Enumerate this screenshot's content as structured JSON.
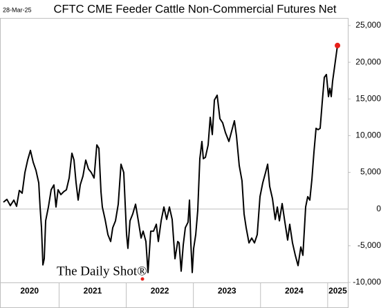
{
  "chart_data": {
    "type": "line",
    "title": "CFTC CME Feeder Cattle Non-Commercial Futures Net",
    "date_label": "28-Mar-25",
    "watermark": "The Daily Shot®",
    "x": [
      2020.171,
      2020.223,
      2020.274,
      2020.326,
      2020.367,
      2020.408,
      2020.45,
      2020.491,
      2020.532,
      2020.573,
      2020.614,
      2020.656,
      2020.697,
      2020.717,
      2020.738,
      2020.759,
      2020.779,
      2020.8,
      2020.841,
      2020.882,
      2020.923,
      2020.954,
      2020.985,
      2021.026,
      2021.067,
      2021.109,
      2021.15,
      2021.191,
      2021.222,
      2021.253,
      2021.284,
      2021.315,
      2021.356,
      2021.397,
      2021.438,
      2021.479,
      2021.521,
      2021.562,
      2021.593,
      2021.624,
      2021.644,
      2021.685,
      2021.727,
      2021.768,
      2021.799,
      2021.84,
      2021.881,
      2021.922,
      2021.963,
      2022.005,
      2022.025,
      2022.056,
      2022.097,
      2022.139,
      2022.18,
      2022.221,
      2022.252,
      2022.293,
      2022.324,
      2022.365,
      2022.406,
      2022.448,
      2022.478,
      2022.52,
      2022.561,
      2022.602,
      2022.643,
      2022.684,
      2022.726,
      2022.767,
      2022.787,
      2022.818,
      2022.849,
      2022.88,
      2022.921,
      2022.942,
      2022.962,
      2022.983,
      2023.004,
      2023.035,
      2023.065,
      2023.096,
      2023.127,
      2023.148,
      2023.179,
      2023.22,
      2023.251,
      2023.282,
      2023.313,
      2023.354,
      2023.395,
      2023.436,
      2023.477,
      2023.529,
      2023.57,
      2023.611,
      2023.642,
      2023.683,
      2023.724,
      2023.755,
      2023.786,
      2023.828,
      2023.869,
      2023.91,
      2023.951,
      2023.992,
      2024.033,
      2024.075,
      2024.106,
      2024.136,
      2024.178,
      2024.219,
      2024.25,
      2024.281,
      2024.322,
      2024.363,
      2024.404,
      2024.435,
      2024.476,
      2024.518,
      2024.559,
      2024.6,
      2024.631,
      2024.672,
      2024.703,
      2024.734,
      2024.765,
      2024.796,
      2024.827,
      2024.857,
      2024.888,
      2024.919,
      2024.95,
      2024.981,
      2025.012,
      2025.032,
      2025.053,
      2025.073,
      2025.104,
      2025.146
    ],
    "series": [
      {
        "color": "#000000",
        "values": [
          940,
          1320,
          470,
          1220,
          380,
          2540,
          2160,
          4980,
          6670,
          7990,
          6390,
          5260,
          3570,
          280,
          -2540,
          -7610,
          -6770,
          -1600,
          280,
          2630,
          3290,
          280,
          2630,
          1970,
          2350,
          2630,
          4230,
          7610,
          6670,
          3570,
          1220,
          3290,
          4510,
          6670,
          5450,
          4980,
          4230,
          8740,
          8270,
          2350,
          280,
          -1410,
          -3480,
          -4420,
          -2540,
          -1600,
          660,
          6110,
          4980,
          -3480,
          -5360,
          -1600,
          -660,
          660,
          -1600,
          -3950,
          -3010,
          -4420,
          -8650,
          -3010,
          -3010,
          -2070,
          -4420,
          -1600,
          280,
          -1410,
          280,
          -1410,
          -6770,
          -4420,
          -4610,
          -8460,
          -4890,
          -2540,
          -1790,
          1220,
          -4610,
          -8650,
          -5360,
          -3480,
          -190,
          6860,
          9210,
          6860,
          7050,
          8740,
          12500,
          10150,
          14850,
          15510,
          12310,
          11750,
          10430,
          9210,
          10620,
          12030,
          9960,
          5920,
          3850,
          -660,
          -2540,
          -4610,
          -3950,
          -4610,
          -3480,
          1690,
          3570,
          4980,
          6110,
          3100,
          1410,
          -1410,
          280,
          -1600,
          750,
          -1790,
          -4230,
          -2070,
          -4610,
          -6300,
          -7710,
          -5170,
          -6300,
          280,
          1690,
          1220,
          4040,
          7800,
          11000,
          10810,
          11000,
          14570,
          17950,
          18330,
          15320,
          16450,
          15320,
          17390,
          19460,
          22280
        ]
      }
    ],
    "last_point_color": "#e8201a",
    "categories": [
      "2020",
      "2021",
      "2022",
      "2023",
      "2024",
      "2025"
    ],
    "xlim": [
      2020.12,
      2025.3
    ],
    "xticks": [
      2021,
      2022,
      2023,
      2024,
      2025
    ],
    "ylim": [
      -10000,
      25000
    ],
    "yticks": [
      {
        "value": -10000,
        "label": "-10,000"
      },
      {
        "value": -5000,
        "label": "-5,000"
      },
      0,
      {
        "value": 5000,
        "label": "5,000"
      },
      {
        "value": 10000,
        "label": "10,000"
      },
      {
        "value": 15000,
        "label": "15,000"
      },
      {
        "value": 20000,
        "label": "20,000"
      },
      {
        "value": 25000,
        "label": "25,000"
      }
    ]
  }
}
